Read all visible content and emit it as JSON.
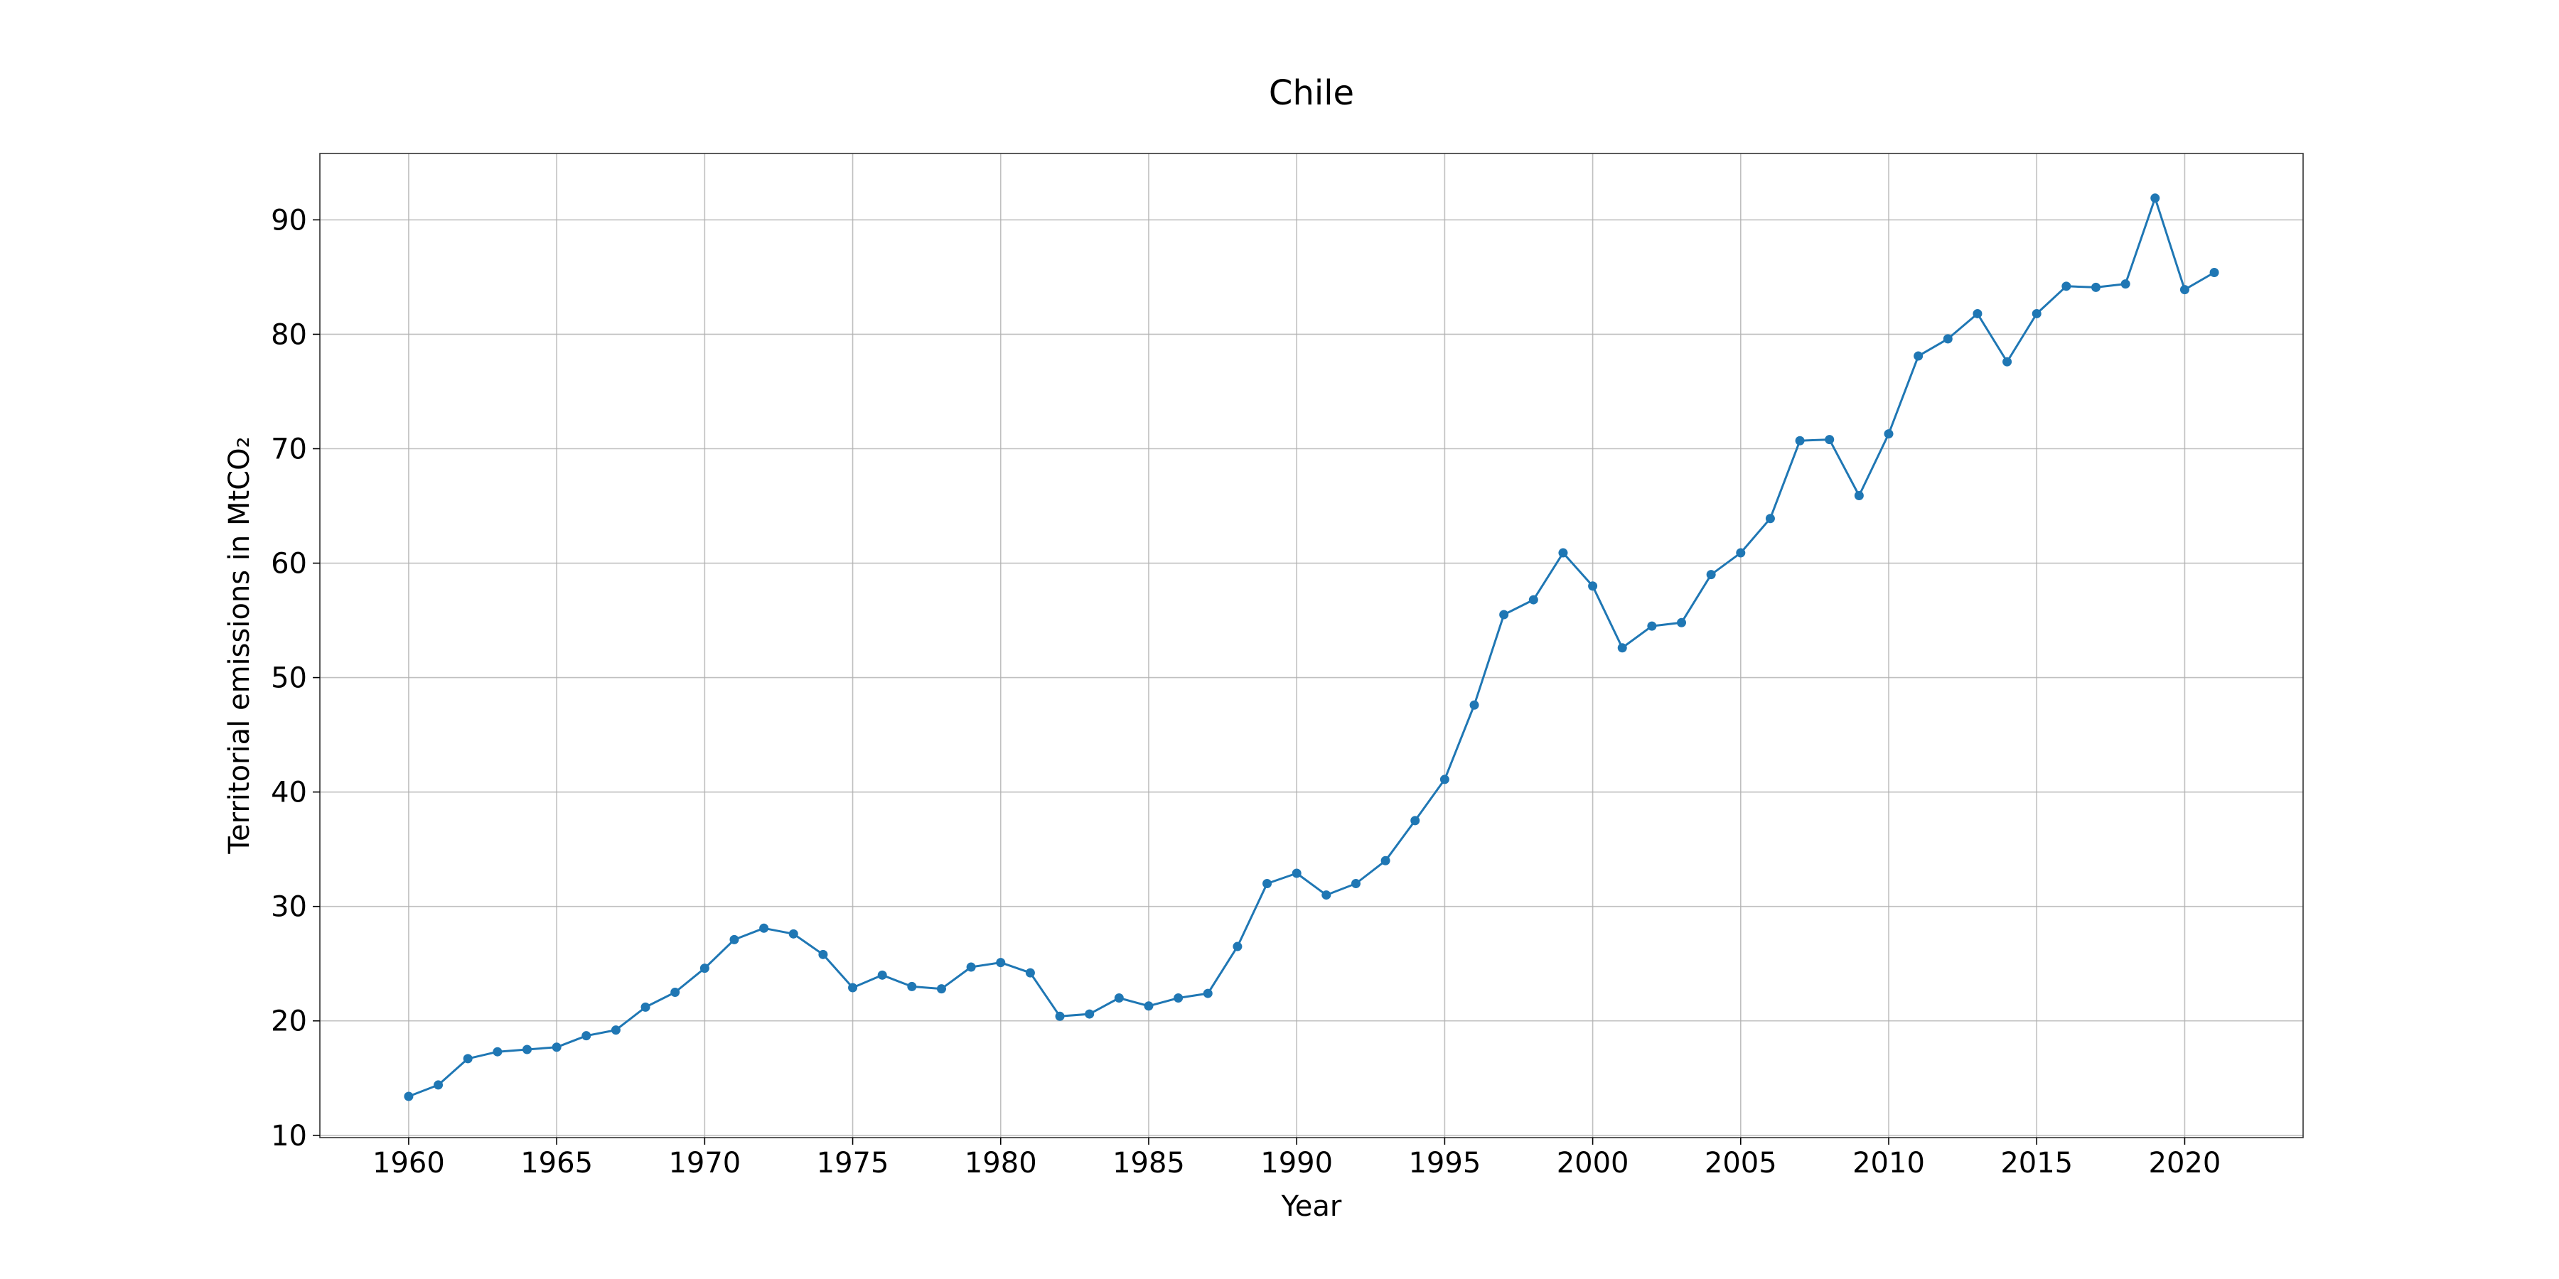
{
  "chart_data": {
    "type": "line",
    "title": "Chile",
    "xlabel": "Year",
    "ylabel": "Territorial emissions in MtCO₂",
    "xlim": [
      1957,
      2024
    ],
    "ylim": [
      9.8,
      95.8
    ],
    "xticks": [
      1960,
      1965,
      1970,
      1975,
      1980,
      1985,
      1990,
      1995,
      2000,
      2005,
      2010,
      2015,
      2020
    ],
    "yticks": [
      10,
      20,
      30,
      40,
      50,
      60,
      70,
      80,
      90
    ],
    "grid": true,
    "series": [
      {
        "color": "#1f77b4",
        "marker": "circle",
        "x": [
          1960,
          1961,
          1962,
          1963,
          1964,
          1965,
          1966,
          1967,
          1968,
          1969,
          1970,
          1971,
          1972,
          1973,
          1974,
          1975,
          1976,
          1977,
          1978,
          1979,
          1980,
          1981,
          1982,
          1983,
          1984,
          1985,
          1986,
          1987,
          1988,
          1989,
          1990,
          1991,
          1992,
          1993,
          1994,
          1995,
          1996,
          1997,
          1998,
          1999,
          2000,
          2001,
          2002,
          2003,
          2004,
          2005,
          2006,
          2007,
          2008,
          2009,
          2010,
          2011,
          2012,
          2013,
          2014,
          2015,
          2016,
          2017,
          2018,
          2019,
          2020,
          2021
        ],
        "y": [
          13.4,
          14.4,
          16.7,
          17.3,
          17.5,
          17.7,
          18.7,
          19.2,
          21.2,
          22.5,
          24.6,
          27.1,
          28.1,
          27.6,
          25.8,
          22.9,
          24.0,
          23.0,
          22.8,
          24.7,
          25.1,
          24.2,
          20.4,
          20.6,
          22.0,
          21.3,
          22.0,
          22.4,
          26.5,
          32.0,
          32.9,
          31.0,
          32.0,
          34.0,
          37.5,
          41.1,
          47.6,
          55.5,
          56.8,
          60.9,
          58.0,
          52.6,
          54.5,
          54.8,
          59.0,
          60.9,
          63.9,
          70.7,
          70.8,
          65.9,
          71.3,
          78.1,
          79.6,
          81.8,
          77.6,
          81.8,
          84.2,
          84.1,
          84.4,
          91.9,
          83.9,
          85.4
        ]
      }
    ]
  }
}
